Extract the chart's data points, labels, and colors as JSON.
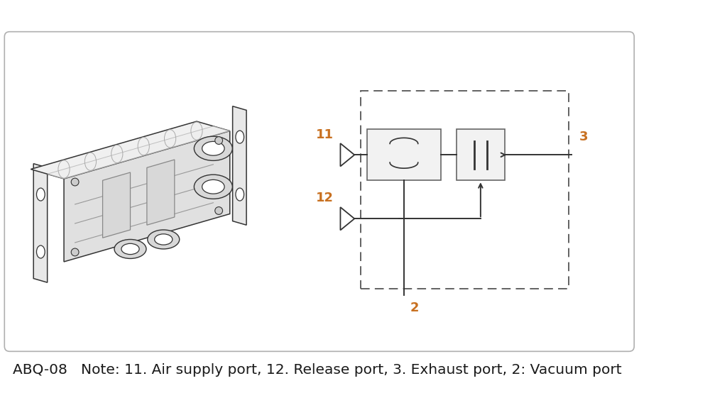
{
  "title_text": "ABQ-08   Note: 11. Air supply port, 12. Release port, 3. Exhaust port, 2: Vacuum port",
  "border_color": "#b0b0b0",
  "diagram_color": "#333333",
  "label_color": "#c87020",
  "bg_color": "#ffffff",
  "title_fontsize": 14.5,
  "label_fontsize": 13,
  "figsize": [
    10.0,
    5.85
  ],
  "dpi": 100
}
